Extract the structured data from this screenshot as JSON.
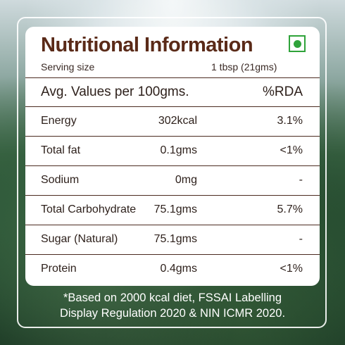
{
  "title": "Nutritional Information",
  "serving": {
    "label": "Serving size",
    "value": "1 tbsp (21gms)"
  },
  "header": {
    "label": "Avg. Values per 100gms.",
    "rda_label": "%RDA"
  },
  "rows": [
    {
      "name": "Energy",
      "amount": "302kcal",
      "rda": "3.1%"
    },
    {
      "name": "Total fat",
      "amount": "0.1gms",
      "rda": "<1%"
    },
    {
      "name": "Sodium",
      "amount": "0mg",
      "rda": "-"
    },
    {
      "name": "Total Carbohydrate",
      "amount": "75.1gms",
      "rda": "5.7%"
    },
    {
      "name": "Sugar (Natural)",
      "amount": "75.1gms",
      "rda": "-"
    },
    {
      "name": "Protein",
      "amount": "0.4gms",
      "rda": "<1%"
    }
  ],
  "footnote": {
    "line1": "*Based on 2000 kcal diet, FSSAI Labelling",
    "line2": "Display Regulation 2020 & NIN ICMR 2020."
  },
  "colors": {
    "title": "#5a2a18",
    "veg_mark": "#2fa33a",
    "divider": "#4b2b20"
  },
  "icons": {
    "veg": "veg-symbol-icon"
  }
}
